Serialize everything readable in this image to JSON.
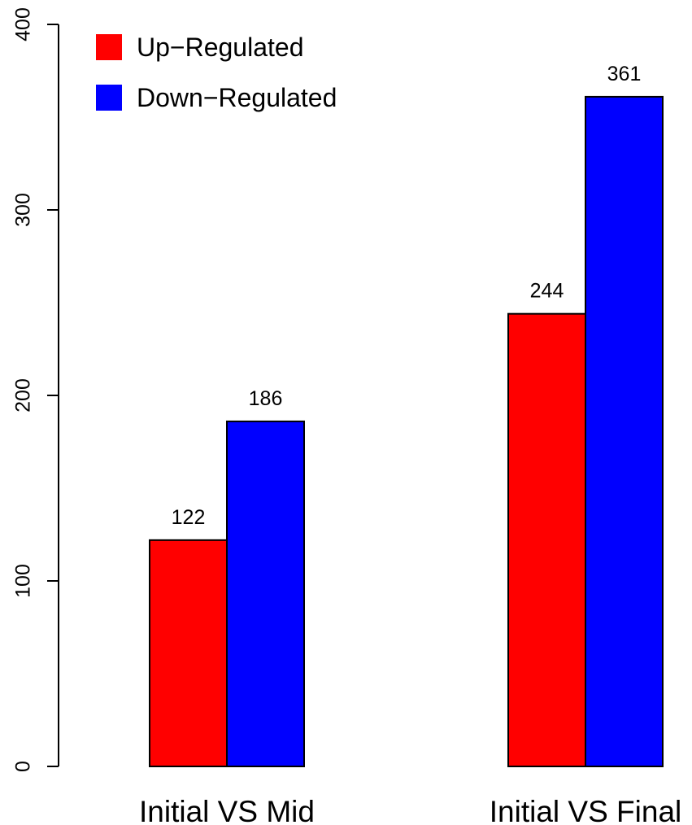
{
  "chart_data": {
    "type": "bar",
    "categories": [
      "Initial VS Mid",
      "Initial VS Final"
    ],
    "series": [
      {
        "name": "Up−Regulated",
        "color": "#ff0000",
        "values": [
          122,
          244
        ]
      },
      {
        "name": "Down−Regulated",
        "color": "#0000ff",
        "values": [
          186,
          361
        ]
      }
    ],
    "yticks": [
      "0",
      "100",
      "200",
      "300",
      "400"
    ],
    "ylim": [
      0,
      400
    ],
    "legend_position": "top-left",
    "grid": false
  }
}
